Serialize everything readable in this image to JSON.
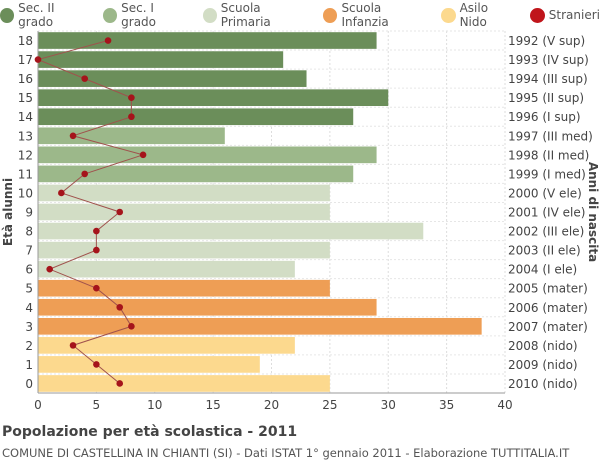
{
  "chart_data": {
    "type": "bar",
    "orientation": "horizontal",
    "ages": [
      "18",
      "17",
      "16",
      "15",
      "14",
      "13",
      "12",
      "11",
      "10",
      "9",
      "8",
      "7",
      "6",
      "5",
      "4",
      "3",
      "2",
      "1",
      "0"
    ],
    "birth_years": [
      "1992 (V sup)",
      "1993 (IV sup)",
      "1994 (III sup)",
      "1995 (II sup)",
      "1996 (I sup)",
      "1997 (III med)",
      "1998 (II med)",
      "1999 (I med)",
      "2000 (V ele)",
      "2001 (IV ele)",
      "2002 (III ele)",
      "2003 (II ele)",
      "2004 (I ele)",
      "2005 (mater)",
      "2006 (mater)",
      "2007 (mater)",
      "2008 (nido)",
      "2009 (nido)",
      "2010 (nido)"
    ],
    "values": [
      29,
      21,
      23,
      30,
      27,
      16,
      29,
      27,
      25,
      25,
      33,
      25,
      22,
      25,
      29,
      38,
      22,
      19,
      25
    ],
    "groups": [
      "sec2",
      "sec2",
      "sec2",
      "sec2",
      "sec2",
      "sec1",
      "sec1",
      "sec1",
      "prim",
      "prim",
      "prim",
      "prim",
      "prim",
      "inf",
      "inf",
      "inf",
      "nido",
      "nido",
      "nido"
    ],
    "stranieri": [
      6,
      0,
      4,
      8,
      8,
      3,
      9,
      4,
      2,
      7,
      5,
      5,
      1,
      5,
      7,
      8,
      3,
      5,
      7
    ],
    "legend": [
      {
        "key": "sec2",
        "label": "Sec. II grado",
        "color": "#6b8e5a"
      },
      {
        "key": "sec1",
        "label": "Sec. I grado",
        "color": "#9cb88a"
      },
      {
        "key": "prim",
        "label": "Scuola Primaria",
        "color": "#d2ddc5"
      },
      {
        "key": "inf",
        "label": "Scuola Infanzia",
        "color": "#ee9e55"
      },
      {
        "key": "nido",
        "label": "Asilo Nido",
        "color": "#fcd98e"
      },
      {
        "key": "str",
        "label": "Stranieri",
        "color": "#c0151b"
      }
    ],
    "x_ticks": [
      "0",
      "5",
      "10",
      "15",
      "20",
      "25",
      "30",
      "35",
      "40"
    ],
    "xlim": [
      0,
      40
    ],
    "ylabel": "Età alunni",
    "ylabel_right": "Anni di nascita",
    "grid": true
  },
  "caption": {
    "title": "Popolazione per età scolastica - 2011",
    "subtitle": "COMUNE DI CASTELLINA IN CHIANTI (SI) - Dati ISTAT 1° gennaio 2011 - Elaborazione TUTTITALIA.IT"
  }
}
